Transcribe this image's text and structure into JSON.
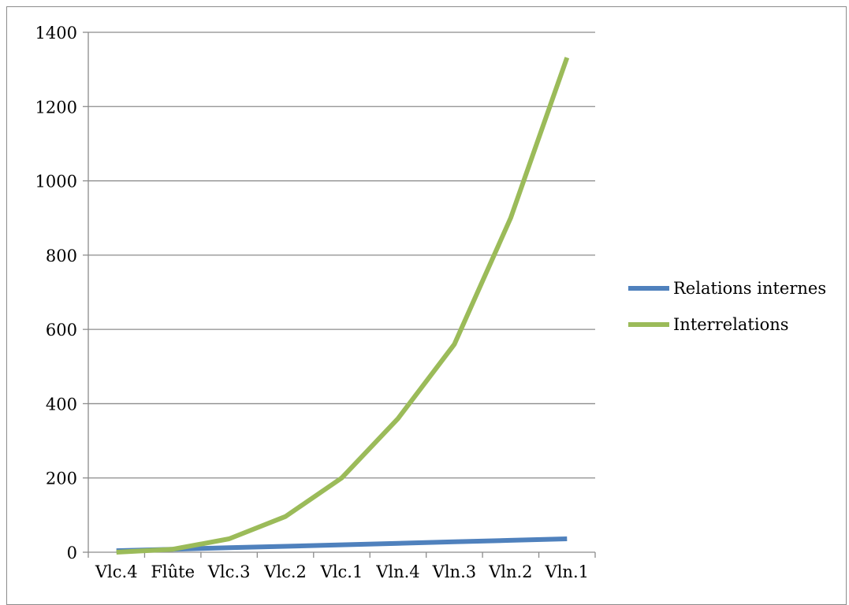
{
  "chart_data": {
    "type": "line",
    "categories": [
      "Vlc.4",
      "Flûte",
      "Vlc.3",
      "Vlc.2",
      "Vlc.1",
      "Vln.4",
      "Vln.3",
      "Vln.2",
      "Vln.1"
    ],
    "series": [
      {
        "name": "Relations internes",
        "values": [
          4,
          8,
          12,
          16,
          20,
          24,
          28,
          32,
          36
        ],
        "color": "#4f81bd"
      },
      {
        "name": "Interrelations",
        "values": [
          0,
          8,
          36,
          96,
          200,
          360,
          560,
          900,
          1332
        ],
        "color": "#9bbb59"
      }
    ],
    "ylim": [
      0,
      1400
    ],
    "yticks": [
      0,
      200,
      400,
      600,
      800,
      1000,
      1200,
      1400
    ],
    "grid": true,
    "legend_position": "right"
  }
}
